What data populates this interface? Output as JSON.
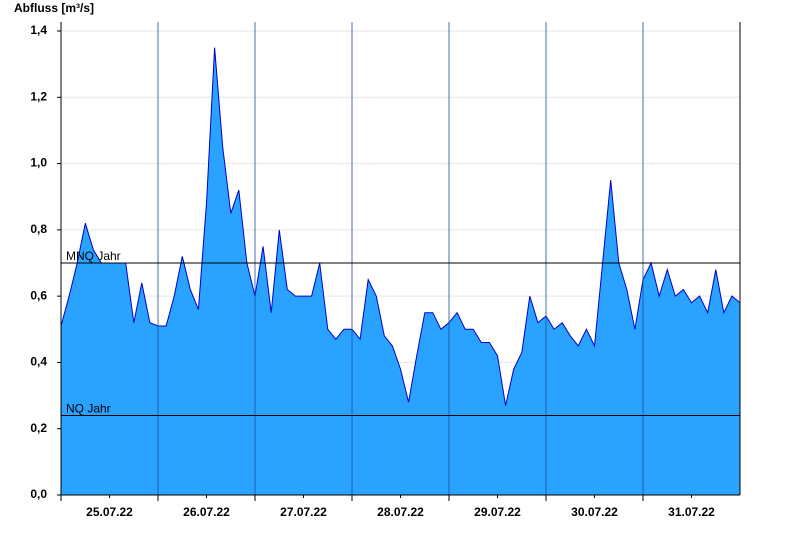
{
  "chart_data": {
    "type": "area",
    "y_label": "Abfluss [m³/s]",
    "x_labels": [
      "25.07.22",
      "26.07.22",
      "27.07.22",
      "28.07.22",
      "29.07.22",
      "30.07.22",
      "31.07.22"
    ],
    "values": [
      0.51,
      0.6,
      0.7,
      0.82,
      0.74,
      0.7,
      0.7,
      0.7,
      0.7,
      0.52,
      0.64,
      0.52,
      0.51,
      0.51,
      0.6,
      0.72,
      0.62,
      0.56,
      0.88,
      1.35,
      1.05,
      0.85,
      0.92,
      0.7,
      0.6,
      0.75,
      0.55,
      0.8,
      0.62,
      0.6,
      0.6,
      0.6,
      0.7,
      0.5,
      0.47,
      0.5,
      0.5,
      0.47,
      0.65,
      0.6,
      0.48,
      0.45,
      0.38,
      0.28,
      0.42,
      0.55,
      0.55,
      0.5,
      0.52,
      0.55,
      0.5,
      0.5,
      0.46,
      0.46,
      0.42,
      0.27,
      0.38,
      0.43,
      0.6,
      0.52,
      0.54,
      0.5,
      0.52,
      0.48,
      0.45,
      0.5,
      0.45,
      0.7,
      0.95,
      0.7,
      0.62,
      0.5,
      0.65,
      0.7,
      0.6,
      0.68,
      0.6,
      0.62,
      0.58,
      0.6,
      0.55,
      0.68,
      0.55,
      0.6,
      0.58
    ],
    "color": "#29a3ff",
    "line_color": "#0000cc",
    "ylim": [
      0,
      1.4
    ],
    "yticks": [
      {
        "value": 0,
        "label": "0,0"
      },
      {
        "value": 0.2,
        "label": "0,2"
      },
      {
        "value": 0.4,
        "label": "0,4"
      },
      {
        "value": 0.6,
        "label": "0,6"
      },
      {
        "value": 0.8,
        "label": "0,8"
      },
      {
        "value": 1.0,
        "label": "1,0"
      },
      {
        "value": 1.2,
        "label": "1,2"
      },
      {
        "value": 1.4,
        "label": "1,4"
      }
    ],
    "grid": true,
    "reference_lines": [
      {
        "label": "MNQ Jahr",
        "value": 0.7
      },
      {
        "label": "NQ Jahr",
        "value": 0.24
      }
    ]
  }
}
